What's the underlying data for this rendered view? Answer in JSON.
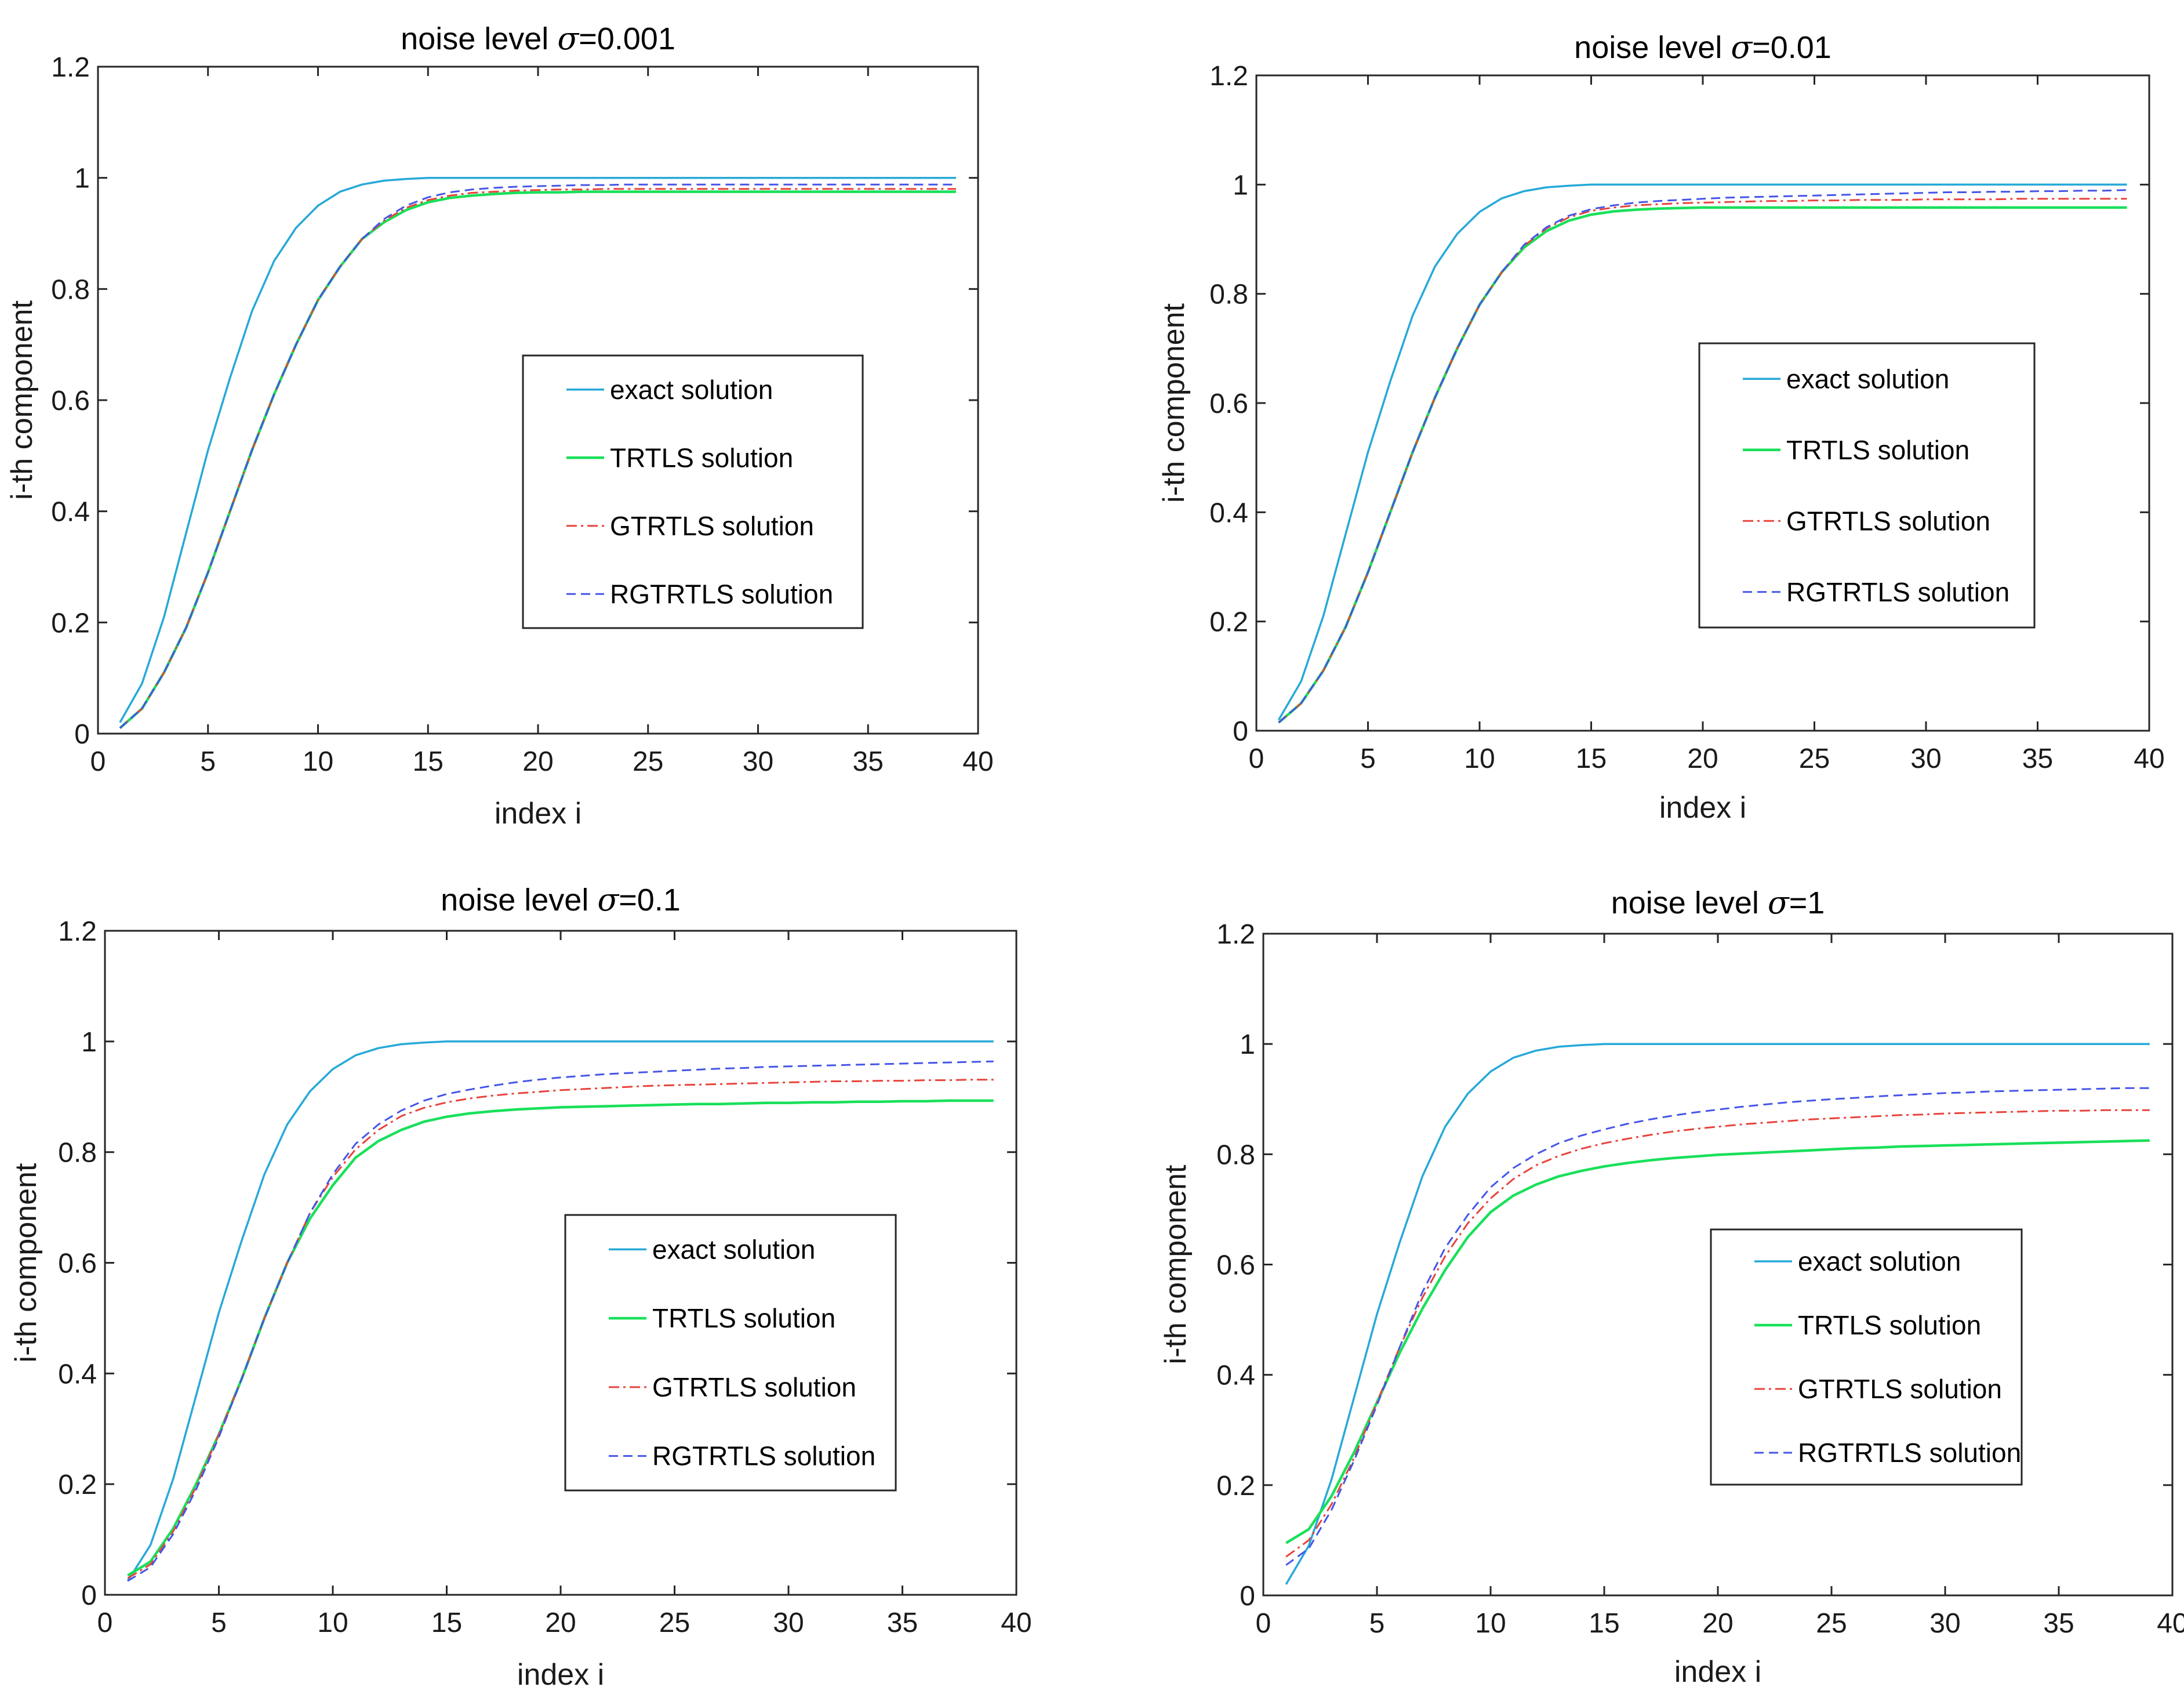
{
  "series_styles": {
    "exact solution": {
      "color": "#26a9d8",
      "dash": "none",
      "width": 3.5
    },
    "TRTLS solution": {
      "color": "#19e05a",
      "dash": "none",
      "width": 4.5
    },
    "GTRTLS solution": {
      "color": "#e8433b",
      "dash": "18,7,4,7",
      "width": 3
    },
    "RGTRTLS solution": {
      "color": "#4555e8",
      "dash": "16,9",
      "width": 3
    }
  },
  "chart_data": [
    {
      "type": "line",
      "title": "noise level σ=0.001",
      "title_prefix": "noise level ",
      "title_symbol": "σ",
      "title_suffix": "=0.001",
      "xlabel": "index i",
      "ylabel": "i-th component",
      "xlim": [
        0,
        40
      ],
      "ylim": [
        0,
        1.2
      ],
      "xticks": [
        0,
        5,
        10,
        15,
        20,
        25,
        30,
        35,
        40
      ],
      "yticks": [
        0,
        0.2,
        0.4,
        0.6,
        0.8,
        1,
        1.2
      ],
      "ytick_labels": [
        "0",
        "0.2",
        "0.4",
        "0.6",
        "0.8",
        "1",
        "1.2"
      ],
      "legend": [
        "exact solution",
        "TRTLS solution",
        "GTRTLS solution",
        "RGTRTLS solution"
      ],
      "x": [
        1,
        2,
        3,
        4,
        5,
        6,
        7,
        8,
        9,
        10,
        11,
        12,
        13,
        14,
        15,
        16,
        17,
        18,
        19,
        20,
        21,
        22,
        23,
        24,
        25,
        26,
        27,
        28,
        29,
        30,
        31,
        32,
        33,
        34,
        35,
        36,
        37,
        38,
        39
      ],
      "series": [
        {
          "name": "exact solution",
          "values": [
            0.02,
            0.09,
            0.21,
            0.36,
            0.51,
            0.64,
            0.76,
            0.85,
            0.91,
            0.95,
            0.975,
            0.988,
            0.995,
            0.998,
            1,
            1,
            1,
            1,
            1,
            1,
            1,
            1,
            1,
            1,
            1,
            1,
            1,
            1,
            1,
            1,
            1,
            1,
            1,
            1,
            1,
            1,
            1,
            1,
            1
          ]
        },
        {
          "name": "TRTLS solution",
          "values": [
            0.01,
            0.045,
            0.11,
            0.19,
            0.29,
            0.4,
            0.51,
            0.61,
            0.7,
            0.78,
            0.84,
            0.89,
            0.92,
            0.942,
            0.956,
            0.964,
            0.968,
            0.971,
            0.973,
            0.974,
            0.974,
            0.975,
            0.975,
            0.975,
            0.975,
            0.975,
            0.975,
            0.975,
            0.975,
            0.975,
            0.975,
            0.975,
            0.975,
            0.975,
            0.975,
            0.975,
            0.975,
            0.975,
            0.975
          ]
        },
        {
          "name": "GTRTLS solution",
          "values": [
            0.01,
            0.045,
            0.11,
            0.19,
            0.29,
            0.4,
            0.51,
            0.61,
            0.7,
            0.78,
            0.84,
            0.89,
            0.923,
            0.946,
            0.96,
            0.968,
            0.973,
            0.975,
            0.977,
            0.978,
            0.979,
            0.979,
            0.98,
            0.98,
            0.98,
            0.98,
            0.98,
            0.98,
            0.98,
            0.98,
            0.98,
            0.98,
            0.98,
            0.98,
            0.98,
            0.98,
            0.98,
            0.98,
            0.98
          ]
        },
        {
          "name": "RGTRTLS solution",
          "values": [
            0.01,
            0.045,
            0.11,
            0.19,
            0.29,
            0.4,
            0.51,
            0.61,
            0.7,
            0.78,
            0.84,
            0.89,
            0.926,
            0.95,
            0.965,
            0.974,
            0.979,
            0.982,
            0.984,
            0.985,
            0.986,
            0.987,
            0.987,
            0.988,
            0.988,
            0.988,
            0.988,
            0.988,
            0.988,
            0.988,
            0.988,
            0.988,
            0.988,
            0.988,
            0.988,
            0.988,
            0.988,
            0.988,
            0.988
          ]
        }
      ]
    },
    {
      "type": "line",
      "title": "noise level σ=0.01",
      "title_prefix": "noise level ",
      "title_symbol": "σ",
      "title_suffix": "=0.01",
      "xlabel": "index i",
      "ylabel": "i-th component",
      "xlim": [
        0,
        40
      ],
      "ylim": [
        0,
        1.2
      ],
      "xticks": [
        0,
        5,
        10,
        15,
        20,
        25,
        30,
        35,
        40
      ],
      "yticks": [
        0,
        0.2,
        0.4,
        0.6,
        0.8,
        1,
        1.2
      ],
      "ytick_labels": [
        "0",
        "0.2",
        "0.4",
        "0.6",
        "0.8",
        "1",
        "1.2"
      ],
      "legend": [
        "exact solution",
        "TRTLS solution",
        "GTRTLS solution",
        "RGTRTLS solution"
      ],
      "x": [
        1,
        2,
        3,
        4,
        5,
        6,
        7,
        8,
        9,
        10,
        11,
        12,
        13,
        14,
        15,
        16,
        17,
        18,
        19,
        20,
        21,
        22,
        23,
        24,
        25,
        26,
        27,
        28,
        29,
        30,
        31,
        32,
        33,
        34,
        35,
        36,
        37,
        38,
        39
      ],
      "series": [
        {
          "name": "exact solution",
          "values": [
            0.02,
            0.09,
            0.21,
            0.36,
            0.51,
            0.64,
            0.76,
            0.85,
            0.91,
            0.95,
            0.975,
            0.988,
            0.995,
            0.998,
            1,
            1,
            1,
            1,
            1,
            1,
            1,
            1,
            1,
            1,
            1,
            1,
            1,
            1,
            1,
            1,
            1,
            1,
            1,
            1,
            1,
            1,
            1,
            1,
            1
          ]
        },
        {
          "name": "TRTLS solution",
          "values": [
            0.015,
            0.05,
            0.11,
            0.19,
            0.29,
            0.4,
            0.51,
            0.61,
            0.7,
            0.78,
            0.84,
            0.885,
            0.915,
            0.934,
            0.945,
            0.951,
            0.954,
            0.956,
            0.957,
            0.958,
            0.958,
            0.958,
            0.958,
            0.958,
            0.958,
            0.958,
            0.958,
            0.958,
            0.958,
            0.958,
            0.958,
            0.958,
            0.958,
            0.958,
            0.958,
            0.958,
            0.958,
            0.958,
            0.958
          ]
        },
        {
          "name": "GTRTLS solution",
          "values": [
            0.015,
            0.05,
            0.11,
            0.19,
            0.29,
            0.4,
            0.51,
            0.61,
            0.7,
            0.78,
            0.84,
            0.888,
            0.92,
            0.94,
            0.952,
            0.958,
            0.962,
            0.964,
            0.966,
            0.967,
            0.968,
            0.969,
            0.97,
            0.97,
            0.971,
            0.971,
            0.972,
            0.972,
            0.972,
            0.973,
            0.973,
            0.973,
            0.973,
            0.974,
            0.974,
            0.974,
            0.974,
            0.974,
            0.974
          ]
        },
        {
          "name": "RGTRTLS solution",
          "values": [
            0.015,
            0.05,
            0.11,
            0.19,
            0.29,
            0.4,
            0.51,
            0.61,
            0.7,
            0.78,
            0.84,
            0.89,
            0.922,
            0.943,
            0.955,
            0.962,
            0.967,
            0.97,
            0.972,
            0.974,
            0.976,
            0.977,
            0.978,
            0.979,
            0.98,
            0.981,
            0.982,
            0.983,
            0.984,
            0.985,
            0.986,
            0.986,
            0.987,
            0.987,
            0.988,
            0.988,
            0.989,
            0.989,
            0.99
          ]
        }
      ]
    },
    {
      "type": "line",
      "title": "noise level σ=0.1",
      "title_prefix": "noise level ",
      "title_symbol": "σ",
      "title_suffix": "=0.1",
      "xlabel": "index i",
      "ylabel": "i-th component",
      "xlim": [
        0,
        40
      ],
      "ylim": [
        0,
        1.2
      ],
      "xticks": [
        0,
        5,
        10,
        15,
        20,
        25,
        30,
        35,
        40
      ],
      "yticks": [
        0,
        0.2,
        0.4,
        0.6,
        0.8,
        1,
        1.2
      ],
      "ytick_labels": [
        "0",
        "0.2",
        "0.4",
        "0.6",
        "0.8",
        "1",
        "1.2"
      ],
      "legend": [
        "exact solution",
        "TRTLS solution",
        "GTRTLS solution",
        "RGTRTLS solution"
      ],
      "x": [
        1,
        2,
        3,
        4,
        5,
        6,
        7,
        8,
        9,
        10,
        11,
        12,
        13,
        14,
        15,
        16,
        17,
        18,
        19,
        20,
        21,
        22,
        23,
        24,
        25,
        26,
        27,
        28,
        29,
        30,
        31,
        32,
        33,
        34,
        35,
        36,
        37,
        38,
        39
      ],
      "series": [
        {
          "name": "exact solution",
          "values": [
            0.025,
            0.09,
            0.21,
            0.36,
            0.51,
            0.64,
            0.76,
            0.85,
            0.91,
            0.95,
            0.975,
            0.988,
            0.995,
            0.998,
            1,
            1,
            1,
            1,
            1,
            1,
            1,
            1,
            1,
            1,
            1,
            1,
            1,
            1,
            1,
            1,
            1,
            1,
            1,
            1,
            1,
            1,
            1,
            1,
            1
          ]
        },
        {
          "name": "TRTLS solution",
          "values": [
            0.035,
            0.06,
            0.12,
            0.2,
            0.29,
            0.39,
            0.5,
            0.6,
            0.68,
            0.74,
            0.79,
            0.82,
            0.84,
            0.855,
            0.864,
            0.87,
            0.874,
            0.877,
            0.879,
            0.881,
            0.882,
            0.883,
            0.884,
            0.885,
            0.886,
            0.887,
            0.887,
            0.888,
            0.889,
            0.889,
            0.89,
            0.89,
            0.891,
            0.891,
            0.892,
            0.892,
            0.893,
            0.893,
            0.893
          ]
        },
        {
          "name": "GTRTLS solution",
          "values": [
            0.03,
            0.055,
            0.115,
            0.195,
            0.29,
            0.39,
            0.5,
            0.6,
            0.69,
            0.755,
            0.805,
            0.84,
            0.865,
            0.88,
            0.89,
            0.897,
            0.902,
            0.906,
            0.909,
            0.912,
            0.914,
            0.916,
            0.918,
            0.92,
            0.921,
            0.922,
            0.923,
            0.924,
            0.925,
            0.926,
            0.927,
            0.928,
            0.928,
            0.929,
            0.929,
            0.93,
            0.93,
            0.931,
            0.931
          ]
        },
        {
          "name": "RGTRTLS solution",
          "values": [
            0.025,
            0.05,
            0.11,
            0.19,
            0.285,
            0.39,
            0.5,
            0.6,
            0.69,
            0.76,
            0.815,
            0.85,
            0.875,
            0.893,
            0.905,
            0.913,
            0.92,
            0.926,
            0.931,
            0.935,
            0.938,
            0.941,
            0.943,
            0.945,
            0.947,
            0.949,
            0.951,
            0.952,
            0.954,
            0.955,
            0.956,
            0.957,
            0.958,
            0.959,
            0.96,
            0.961,
            0.962,
            0.963,
            0.964
          ]
        }
      ]
    },
    {
      "type": "line",
      "title": "noise level σ=1",
      "title_prefix": "noise level ",
      "title_symbol": "σ",
      "title_suffix": "=1",
      "xlabel": "index i",
      "ylabel": "i-th component",
      "xlim": [
        0,
        40
      ],
      "ylim": [
        0,
        1.2
      ],
      "xticks": [
        0,
        5,
        10,
        15,
        20,
        25,
        30,
        35,
        40
      ],
      "yticks": [
        0,
        0.2,
        0.4,
        0.6,
        0.8,
        1,
        1.2
      ],
      "ytick_labels": [
        "0",
        "0.2",
        "0.4",
        "0.6",
        "0.8",
        "1",
        "1.2"
      ],
      "legend": [
        "exact solution",
        "TRTLS solution",
        "GTRTLS solution",
        "RGTRTLS solution"
      ],
      "x": [
        1,
        2,
        3,
        4,
        5,
        6,
        7,
        8,
        9,
        10,
        11,
        12,
        13,
        14,
        15,
        16,
        17,
        18,
        19,
        20,
        21,
        22,
        23,
        24,
        25,
        26,
        27,
        28,
        29,
        30,
        31,
        32,
        33,
        34,
        35,
        36,
        37,
        38,
        39
      ],
      "series": [
        {
          "name": "exact solution",
          "values": [
            0.02,
            0.09,
            0.21,
            0.36,
            0.51,
            0.64,
            0.76,
            0.85,
            0.91,
            0.95,
            0.975,
            0.988,
            0.995,
            0.998,
            1,
            1,
            1,
            1,
            1,
            1,
            1,
            1,
            1,
            1,
            1,
            1,
            1,
            1,
            1,
            1,
            1,
            1,
            1,
            1,
            1,
            1,
            1,
            1,
            1
          ]
        },
        {
          "name": "TRTLS solution",
          "values": [
            0.095,
            0.12,
            0.18,
            0.26,
            0.35,
            0.44,
            0.52,
            0.59,
            0.65,
            0.695,
            0.725,
            0.745,
            0.76,
            0.77,
            0.778,
            0.784,
            0.789,
            0.793,
            0.796,
            0.799,
            0.801,
            0.803,
            0.805,
            0.807,
            0.809,
            0.811,
            0.812,
            0.814,
            0.815,
            0.816,
            0.817,
            0.818,
            0.819,
            0.82,
            0.821,
            0.822,
            0.823,
            0.824,
            0.825
          ]
        },
        {
          "name": "GTRTLS solution",
          "values": [
            0.07,
            0.1,
            0.165,
            0.25,
            0.35,
            0.45,
            0.54,
            0.615,
            0.675,
            0.72,
            0.755,
            0.78,
            0.797,
            0.81,
            0.82,
            0.828,
            0.835,
            0.841,
            0.846,
            0.85,
            0.854,
            0.857,
            0.86,
            0.863,
            0.865,
            0.867,
            0.869,
            0.871,
            0.872,
            0.874,
            0.875,
            0.876,
            0.877,
            0.878,
            0.879,
            0.879,
            0.88,
            0.88,
            0.88
          ]
        },
        {
          "name": "RGTRTLS solution",
          "values": [
            0.055,
            0.085,
            0.155,
            0.245,
            0.345,
            0.45,
            0.55,
            0.63,
            0.69,
            0.74,
            0.775,
            0.8,
            0.82,
            0.834,
            0.845,
            0.855,
            0.863,
            0.87,
            0.876,
            0.881,
            0.886,
            0.89,
            0.894,
            0.897,
            0.9,
            0.902,
            0.905,
            0.907,
            0.909,
            0.911,
            0.912,
            0.914,
            0.915,
            0.916,
            0.917,
            0.918,
            0.919,
            0.92,
            0.92
          ]
        }
      ]
    }
  ]
}
